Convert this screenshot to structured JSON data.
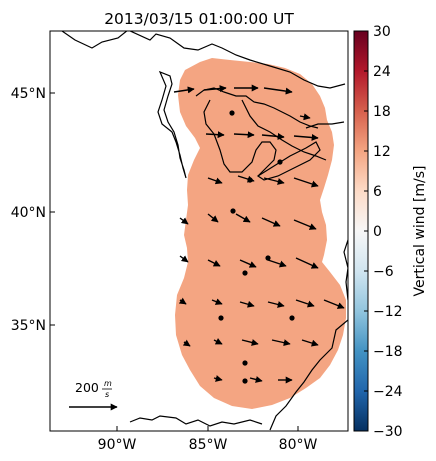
{
  "title": "2013/03/15 01:00:00 UT",
  "colorbar": {
    "label": "Vertical wind [m/s]",
    "ticks": [
      "30",
      "24",
      "18",
      "12",
      "6",
      "0",
      "−6",
      "−12",
      "−18",
      "−24",
      "−30"
    ],
    "colormap": "RdBu_r",
    "range": [
      -30,
      30
    ]
  },
  "axes": {
    "lat_ticks": [
      "45°N",
      "40°N",
      "35°N"
    ],
    "lon_ticks": [
      "90°W",
      "85°W",
      "80°W"
    ]
  },
  "scale_key": {
    "label": "200",
    "unit_num": "m",
    "unit_den": "s"
  },
  "field": {
    "fill_color": "#f4a582",
    "uniform_value_ms": 10
  }
}
